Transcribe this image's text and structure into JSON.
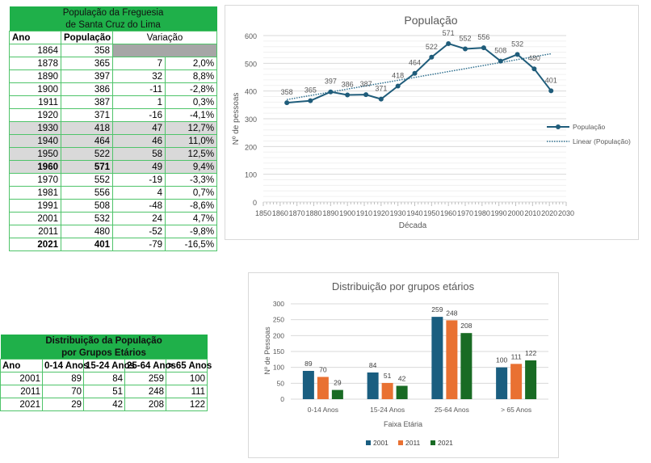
{
  "table1": {
    "title_line1": "População da Freguesia",
    "title_line2": "de Santa Cruz do Lima",
    "headers": [
      "Ano",
      "População",
      "Variação"
    ],
    "rows": [
      {
        "ano": "1864",
        "pop": "358",
        "var": "",
        "pct": "",
        "style": "dk"
      },
      {
        "ano": "1878",
        "pop": "365",
        "var": "7",
        "pct": "2,0%"
      },
      {
        "ano": "1890",
        "pop": "397",
        "var": "32",
        "pct": "8,8%"
      },
      {
        "ano": "1900",
        "pop": "386",
        "var": "-11",
        "pct": "-2,8%"
      },
      {
        "ano": "1911",
        "pop": "387",
        "var": "1",
        "pct": "0,3%"
      },
      {
        "ano": "1920",
        "pop": "371",
        "var": "-16",
        "pct": "-4,1%"
      },
      {
        "ano": "1930",
        "pop": "418",
        "var": "47",
        "pct": "12,7%",
        "style": "gray"
      },
      {
        "ano": "1940",
        "pop": "464",
        "var": "46",
        "pct": "11,0%",
        "style": "gray"
      },
      {
        "ano": "1950",
        "pop": "522",
        "var": "58",
        "pct": "12,5%",
        "style": "gray"
      },
      {
        "ano": "1960",
        "pop": "571",
        "var": "49",
        "pct": "9,4%",
        "style": "gray",
        "bold": true
      },
      {
        "ano": "1970",
        "pop": "552",
        "var": "-19",
        "pct": "-3,3%"
      },
      {
        "ano": "1981",
        "pop": "556",
        "var": "4",
        "pct": "0,7%"
      },
      {
        "ano": "1991",
        "pop": "508",
        "var": "-48",
        "pct": "-8,6%"
      },
      {
        "ano": "2001",
        "pop": "532",
        "var": "24",
        "pct": "4,7%"
      },
      {
        "ano": "2011",
        "pop": "480",
        "var": "-52",
        "pct": "-9,8%"
      },
      {
        "ano": "2021",
        "pop": "401",
        "var": "-79",
        "pct": "-16,5%",
        "bold": true
      }
    ]
  },
  "table2": {
    "title_line1": "Distribuição da População",
    "title_line2": "por Grupos Etários",
    "headers": [
      "Ano",
      "0-14 Anos",
      "15-24 Anos",
      "25-64 Anos",
      "> 65 Anos"
    ],
    "rows": [
      [
        "2001",
        "89",
        "84",
        "259",
        "100"
      ],
      [
        "2011",
        "70",
        "51",
        "248",
        "111"
      ],
      [
        "2021",
        "29",
        "42",
        "208",
        "122"
      ]
    ]
  },
  "chart_data": [
    {
      "type": "line",
      "title": "População",
      "xlabel": "Década",
      "ylabel": "Nº de pessoas",
      "xlim": [
        1850,
        2030
      ],
      "ylim": [
        0,
        600
      ],
      "xticks": [
        "1850",
        "1860",
        "1870",
        "1880",
        "1890",
        "1900",
        "1910",
        "1920",
        "1930",
        "1940",
        "1950",
        "1960",
        "1970",
        "1980",
        "1990",
        "2000",
        "2010",
        "2020",
        "2030"
      ],
      "yticks": [
        "0",
        "100",
        "200",
        "300",
        "400",
        "500",
        "600"
      ],
      "grid": true,
      "legend": "right",
      "x": [
        1864,
        1878,
        1890,
        1900,
        1911,
        1920,
        1930,
        1940,
        1950,
        1960,
        1970,
        1981,
        1991,
        2001,
        2011,
        2021
      ],
      "series": [
        {
          "name": "População",
          "values": [
            358,
            365,
            397,
            386,
            387,
            371,
            418,
            464,
            522,
            571,
            552,
            556,
            508,
            532,
            480,
            401
          ],
          "color": "#1f5c7a"
        }
      ],
      "trendline": {
        "name": "Linear (População)",
        "type": "linear",
        "color": "#2e6f8e"
      }
    },
    {
      "type": "bar",
      "title": "Distribuição por grupos etários",
      "xlabel": "Faixa Etária",
      "ylabel": "Nº de Pessoas",
      "ylim": [
        0,
        300
      ],
      "yticks": [
        "0",
        "50",
        "100",
        "150",
        "200",
        "250",
        "300"
      ],
      "grid": true,
      "legend": "bottom",
      "categories": [
        "0-14 Anos",
        "15-24 Anos",
        "25-64 Anos",
        "> 65 Anos"
      ],
      "series": [
        {
          "name": "2001",
          "values": [
            89,
            84,
            259,
            100
          ],
          "color": "#1a5e80"
        },
        {
          "name": "2011",
          "values": [
            70,
            51,
            248,
            111
          ],
          "color": "#e97132"
        },
        {
          "name": "2021",
          "values": [
            29,
            42,
            208,
            122
          ],
          "color": "#196b24"
        }
      ]
    }
  ]
}
